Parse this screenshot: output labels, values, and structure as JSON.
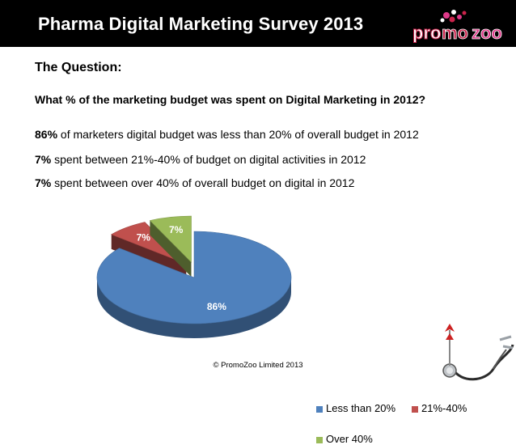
{
  "header": {
    "title": "Pharma Digital Marketing Survey 2013",
    "logo_text": "promozoo"
  },
  "question": {
    "heading": "The Question:",
    "text": "What % of the marketing budget was spent on Digital Marketing in 2012?"
  },
  "findings": [
    {
      "value": "86%",
      "text": " of marketers digital budget was less than 20% of overall budget in 2012"
    },
    {
      "value": "7%",
      "text": " spent between 21%-40% of budget on digital activities in 2012"
    },
    {
      "value": "7%",
      "text": " spent between over 40% of overall budget on digital in 2012"
    }
  ],
  "chart_data": {
    "type": "pie",
    "title": "",
    "categories": [
      "Less than 20%",
      "21%-40%",
      "Over 40%"
    ],
    "values": [
      86,
      7,
      7
    ],
    "data_labels": [
      "86%",
      "7%",
      "7%"
    ],
    "colors": [
      "#4f81bd",
      "#c0504d",
      "#9bbb59"
    ],
    "style": "3d-exploded",
    "legend_position": "right"
  },
  "footer": {
    "copyright": "© PromoZoo Limited 2013"
  }
}
